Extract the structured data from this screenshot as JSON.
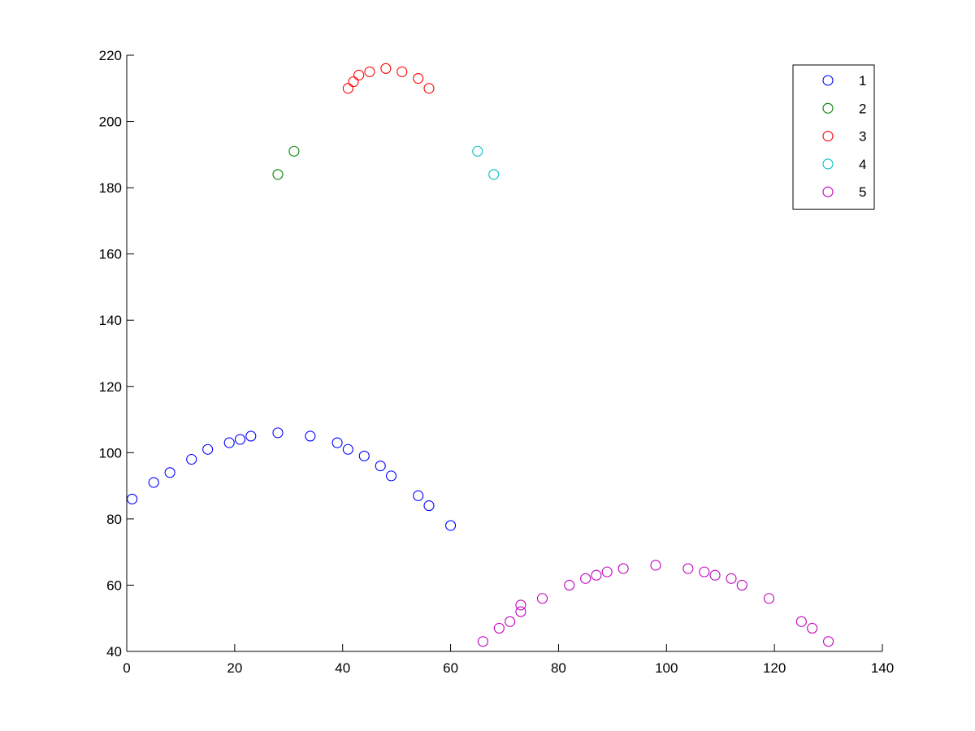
{
  "chart_data": {
    "type": "scatter",
    "title": "",
    "xlabel": "",
    "ylabel": "",
    "xlim": [
      0,
      140
    ],
    "ylim": [
      40,
      220
    ],
    "xticks": [
      0,
      20,
      40,
      60,
      80,
      100,
      120,
      140
    ],
    "yticks": [
      40,
      60,
      80,
      100,
      120,
      140,
      160,
      180,
      200,
      220
    ],
    "grid": false,
    "marker": "open-circle",
    "legend": {
      "placement": "top-right"
    },
    "series": [
      {
        "name": "1",
        "color": "#0000ff",
        "points": [
          [
            1,
            86
          ],
          [
            5,
            91
          ],
          [
            8,
            94
          ],
          [
            12,
            98
          ],
          [
            15,
            101
          ],
          [
            19,
            103
          ],
          [
            21,
            104
          ],
          [
            23,
            105
          ],
          [
            28,
            106
          ],
          [
            34,
            105
          ],
          [
            39,
            103
          ],
          [
            41,
            101
          ],
          [
            44,
            99
          ],
          [
            47,
            96
          ],
          [
            49,
            93
          ],
          [
            54,
            87
          ],
          [
            56,
            84
          ],
          [
            60,
            78
          ]
        ]
      },
      {
        "name": "2",
        "color": "#008000",
        "points": [
          [
            28,
            184
          ],
          [
            31,
            191
          ]
        ]
      },
      {
        "name": "3",
        "color": "#ff0000",
        "points": [
          [
            41,
            210
          ],
          [
            42,
            212
          ],
          [
            43,
            214
          ],
          [
            45,
            215
          ],
          [
            48,
            216
          ],
          [
            51,
            215
          ],
          [
            54,
            213
          ],
          [
            56,
            210
          ]
        ]
      },
      {
        "name": "4",
        "color": "#00bfbf",
        "points": [
          [
            65,
            191
          ],
          [
            68,
            184
          ]
        ]
      },
      {
        "name": "5",
        "color": "#bf00bf",
        "points": [
          [
            66,
            43
          ],
          [
            69,
            47
          ],
          [
            71,
            49
          ],
          [
            73,
            52
          ],
          [
            73,
            54
          ],
          [
            77,
            56
          ],
          [
            82,
            60
          ],
          [
            85,
            62
          ],
          [
            87,
            63
          ],
          [
            89,
            64
          ],
          [
            92,
            65
          ],
          [
            98,
            66
          ],
          [
            104,
            65
          ],
          [
            107,
            64
          ],
          [
            109,
            63
          ],
          [
            112,
            62
          ],
          [
            114,
            60
          ],
          [
            119,
            56
          ],
          [
            125,
            49
          ],
          [
            127,
            47
          ],
          [
            130,
            43
          ]
        ]
      }
    ]
  }
}
